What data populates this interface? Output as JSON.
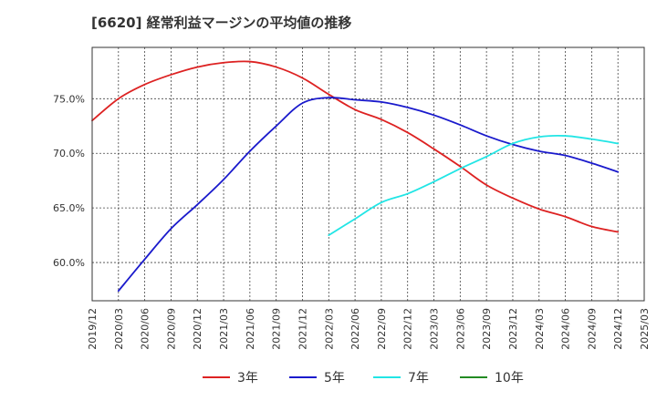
{
  "chart_data": {
    "type": "line",
    "title": "[6620]  経常利益マージンの平均値の推移",
    "xlabel": "",
    "ylabel": "",
    "ylim": [
      56.5,
      79.7
    ],
    "grid": true,
    "legend_position": "bottom",
    "x_ticks": [
      "2019/12",
      "2020/03",
      "2020/06",
      "2020/09",
      "2020/12",
      "2021/03",
      "2021/06",
      "2021/09",
      "2021/12",
      "2022/03",
      "2022/06",
      "2022/09",
      "2022/12",
      "2023/03",
      "2023/06",
      "2023/09",
      "2023/12",
      "2024/03",
      "2024/06",
      "2024/09",
      "2024/12",
      "2025/03"
    ],
    "y_ticks": [
      {
        "value": 60,
        "label": "60.0%"
      },
      {
        "value": 65,
        "label": "65.0%"
      },
      {
        "value": 70,
        "label": "70.0%"
      },
      {
        "value": 75,
        "label": "75.0%"
      }
    ],
    "series": [
      {
        "name": "3年",
        "color": "#dd2222",
        "points": [
          [
            "2019/12",
            73.0
          ],
          [
            "2020/03",
            75.0
          ],
          [
            "2020/06",
            76.3
          ],
          [
            "2020/09",
            77.2
          ],
          [
            "2020/12",
            77.9
          ],
          [
            "2021/03",
            78.3
          ],
          [
            "2021/06",
            78.4
          ],
          [
            "2021/09",
            77.9
          ],
          [
            "2021/12",
            76.9
          ],
          [
            "2022/03",
            75.4
          ],
          [
            "2022/06",
            74.0
          ],
          [
            "2022/09",
            73.1
          ],
          [
            "2022/12",
            71.9
          ],
          [
            "2023/03",
            70.4
          ],
          [
            "2023/06",
            68.8
          ],
          [
            "2023/09",
            67.1
          ],
          [
            "2023/12",
            65.9
          ],
          [
            "2024/03",
            64.9
          ],
          [
            "2024/06",
            64.2
          ],
          [
            "2024/09",
            63.3
          ],
          [
            "2024/12",
            62.8
          ]
        ]
      },
      {
        "name": "5年",
        "color": "#1a1acc",
        "points": [
          [
            "2020/03",
            57.4
          ],
          [
            "2020/06",
            60.3
          ],
          [
            "2020/09",
            63.1
          ],
          [
            "2020/12",
            65.3
          ],
          [
            "2021/03",
            67.6
          ],
          [
            "2021/06",
            70.2
          ],
          [
            "2021/09",
            72.5
          ],
          [
            "2021/12",
            74.6
          ],
          [
            "2022/03",
            75.1
          ],
          [
            "2022/06",
            74.9
          ],
          [
            "2022/09",
            74.7
          ],
          [
            "2022/12",
            74.2
          ],
          [
            "2023/03",
            73.5
          ],
          [
            "2023/06",
            72.6
          ],
          [
            "2023/09",
            71.6
          ],
          [
            "2023/12",
            70.8
          ],
          [
            "2024/03",
            70.2
          ],
          [
            "2024/06",
            69.8
          ],
          [
            "2024/09",
            69.1
          ],
          [
            "2024/12",
            68.3
          ]
        ]
      },
      {
        "name": "7年",
        "color": "#22e5e5",
        "points": [
          [
            "2022/03",
            62.5
          ],
          [
            "2022/06",
            64.0
          ],
          [
            "2022/09",
            65.5
          ],
          [
            "2022/12",
            66.3
          ],
          [
            "2023/03",
            67.4
          ],
          [
            "2023/06",
            68.6
          ],
          [
            "2023/09",
            69.7
          ],
          [
            "2023/12",
            70.9
          ],
          [
            "2024/03",
            71.5
          ],
          [
            "2024/06",
            71.6
          ],
          [
            "2024/09",
            71.3
          ],
          [
            "2024/12",
            70.9
          ]
        ]
      },
      {
        "name": "10年",
        "color": "#228b22",
        "points": []
      }
    ]
  }
}
